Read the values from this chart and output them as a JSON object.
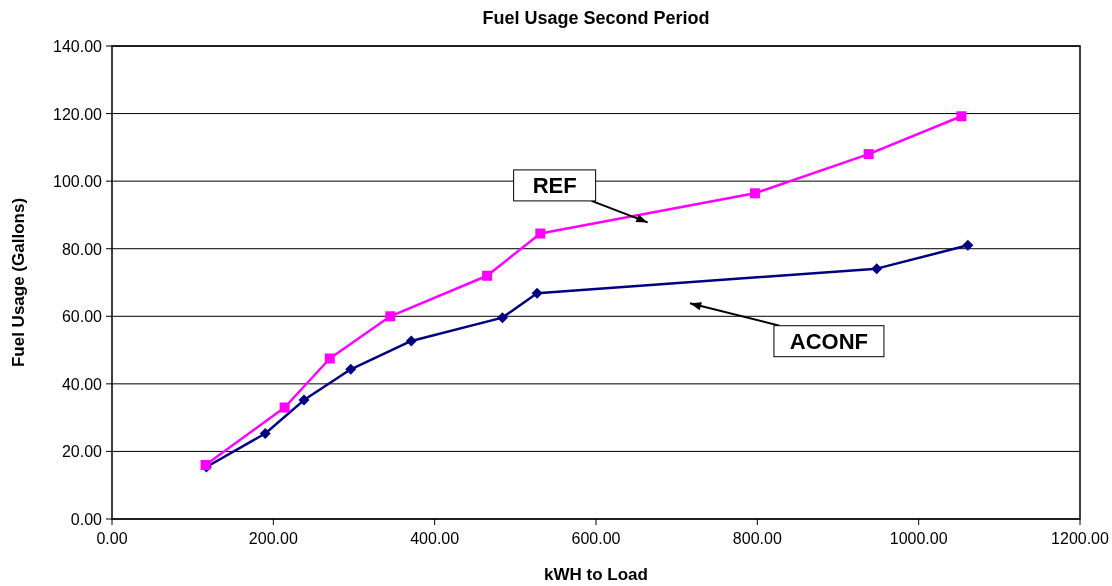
{
  "chart_data": {
    "type": "line",
    "title": "Fuel Usage Second Period",
    "xlabel": "kWH to Load",
    "ylabel": "Fuel Usage (Gallons)",
    "series": [
      {
        "name": "REF",
        "color": "#ff00ff",
        "marker": "square",
        "x": [
          116,
          214,
          270,
          345,
          465,
          531,
          797,
          938,
          1053
        ],
        "values": [
          16.0,
          33.0,
          47.5,
          60.0,
          72.0,
          84.5,
          96.4,
          108.0,
          119.2
        ]
      },
      {
        "name": "ACONF",
        "color": "#000080",
        "marker": "diamond",
        "x": [
          117,
          190,
          238,
          296,
          371,
          484,
          527,
          948,
          1061
        ],
        "values": [
          15.4,
          25.3,
          35.2,
          44.3,
          52.7,
          59.6,
          66.8,
          74.1,
          81.0
        ]
      }
    ],
    "xlim": [
      0,
      1200
    ],
    "ylim": [
      0,
      140
    ],
    "xticks": [
      {
        "value": 0,
        "label": "0.00"
      },
      {
        "value": 200,
        "label": "200.00"
      },
      {
        "value": 400,
        "label": "400.00"
      },
      {
        "value": 600,
        "label": "600.00"
      },
      {
        "value": 800,
        "label": "800.00"
      },
      {
        "value": 1000,
        "label": "1000.00"
      },
      {
        "value": 1200,
        "label": "1200.00"
      }
    ],
    "yticks": [
      {
        "value": 0,
        "label": "0.00"
      },
      {
        "value": 20,
        "label": "20.00"
      },
      {
        "value": 40,
        "label": "40.00"
      },
      {
        "value": 60,
        "label": "60.00"
      },
      {
        "value": 80,
        "label": "80.00"
      },
      {
        "value": 100,
        "label": "100.00"
      },
      {
        "value": 120,
        "label": "120.00"
      },
      {
        "value": 140,
        "label": "140.00"
      }
    ],
    "grid": "y",
    "legend": false
  }
}
